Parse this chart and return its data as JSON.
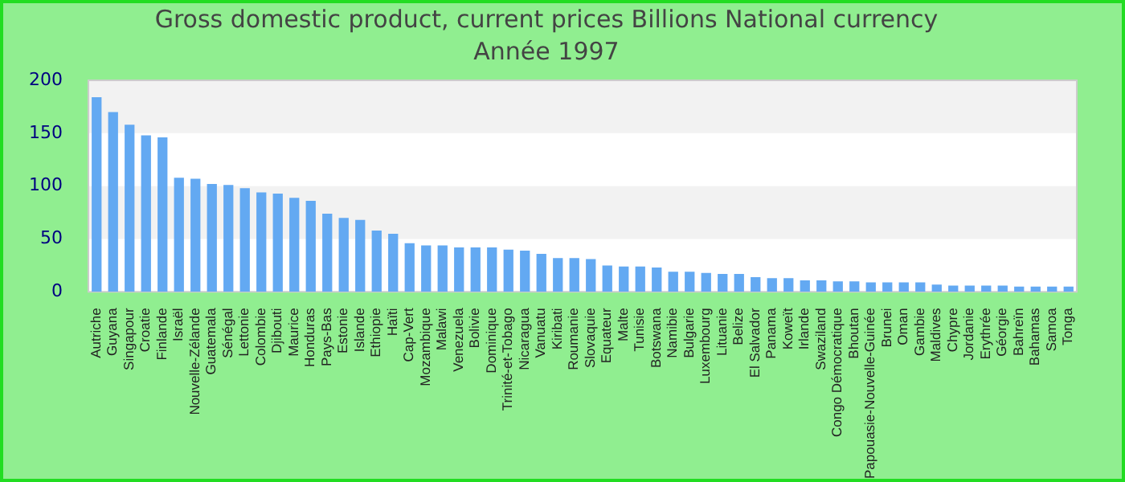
{
  "chart_data": {
    "type": "bar",
    "title": "Gross domestic product, current prices Billions National currency",
    "subtitle": "Année 1997",
    "categories": [
      "Autriche",
      "Guyana",
      "Singapour",
      "Croatie",
      "Finlande",
      "Israël",
      "Nouvelle-Zélande",
      "Guatemala",
      "Sénégal",
      "Lettonie",
      "Colombie",
      "Djibouti",
      "Maurice",
      "Honduras",
      "Pays-Bas",
      "Estonie",
      "Islande",
      "Ethiopie",
      "Haïti",
      "Cap-Vert",
      "Mozambique",
      "Malawi",
      "Venezuela",
      "Bolivie",
      "Dominique",
      "Trinité-et-Tobago",
      "Nicaragua",
      "Vanuatu",
      "Kiribati",
      "Roumanie",
      "Slovaquie",
      "Equateur",
      "Malte",
      "Tunisie",
      "Botswana",
      "Namibie",
      "Bulgarie",
      "Luxembourg",
      "Lituanie",
      "Belize",
      "El Salvador",
      "Panama",
      "Koweït",
      "Irlande",
      "Swaziland",
      "Congo Démocratique",
      "Bhoutan",
      "Papouasie-Nouvelle-Guinée",
      "Brunei",
      "Oman",
      "Gambie",
      "Maldives",
      "Chypre",
      "Jordanie",
      "Erythrée",
      "Géorgie",
      "Bahreïn",
      "Bahamas",
      "Samoa",
      "Tonga"
    ],
    "values": [
      184,
      170,
      158,
      148,
      146,
      108,
      107,
      102,
      101,
      98,
      94,
      93,
      89,
      86,
      74,
      70,
      68,
      58,
      55,
      46,
      44,
      44,
      42,
      42,
      42,
      40,
      39,
      36,
      32,
      32,
      31,
      25,
      24,
      24,
      23,
      19,
      19,
      18,
      17,
      17,
      14,
      13,
      13,
      11,
      11,
      10,
      10,
      9,
      9,
      9,
      9,
      7,
      6,
      6,
      6,
      6,
      5,
      5,
      5,
      5
    ],
    "color": "#63a9f2",
    "ylim": [
      0,
      200
    ],
    "yticks": [
      0,
      50,
      100,
      150,
      200
    ]
  }
}
